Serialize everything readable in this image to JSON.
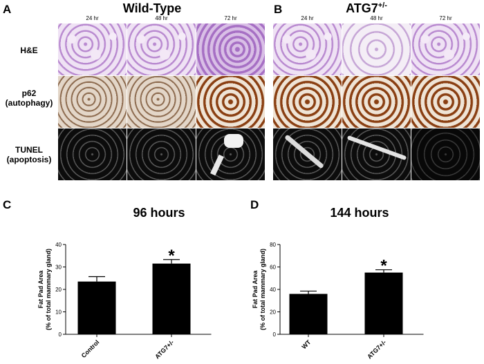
{
  "panels": {
    "A": {
      "letter": "A",
      "title": "Wild-Type"
    },
    "B": {
      "letter": "B",
      "title": "ATG7",
      "title_sup": "+/-"
    },
    "C": {
      "letter": "C",
      "title": "96 hours"
    },
    "D": {
      "letter": "D",
      "title": "144 hours"
    }
  },
  "time_points": [
    "24 hr",
    "48 hr",
    "72 hr"
  ],
  "row_labels": [
    {
      "line1": "H&E",
      "line2": ""
    },
    {
      "line1": "p62",
      "line2": "(autophagy)"
    },
    {
      "line1": "TUNEL",
      "line2": "(apoptosis)"
    }
  ],
  "chart_data": [
    {
      "type": "bar",
      "title": "96 hours",
      "categories": [
        "Control",
        "ATG7+/-"
      ],
      "values": [
        23.5,
        31.5
      ],
      "errors": [
        2.2,
        1.8
      ],
      "ylabel_line1": "Fat Pad Area",
      "ylabel_line2": "(% of total mammary gland)",
      "ylim": [
        0,
        40
      ],
      "yticks": [
        0,
        10,
        20,
        30,
        40
      ],
      "significance": "*"
    },
    {
      "type": "bar",
      "title": "144 hours",
      "categories": [
        "WT",
        "ATG7+/-"
      ],
      "values": [
        36,
        55
      ],
      "errors": [
        2.5,
        2.5
      ],
      "ylabel_line1": "Fat Pad Area",
      "ylabel_line2": "(% of total mammary gland)",
      "ylim": [
        0,
        80
      ],
      "yticks": [
        0,
        20,
        40,
        60,
        80
      ],
      "significance": "*"
    }
  ]
}
